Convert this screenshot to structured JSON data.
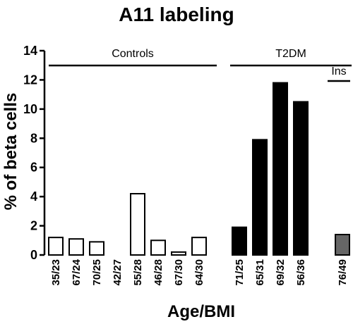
{
  "chart_data": {
    "type": "bar",
    "title": "A11 labeling",
    "xlabel": "Age/BMI",
    "ylabel": "% of beta cells",
    "ylim": [
      0,
      14
    ],
    "yticks": [
      0,
      2,
      4,
      6,
      8,
      10,
      12,
      14
    ],
    "grid": false,
    "groups": [
      {
        "label": "Controls",
        "color": "#ffffff",
        "categories": [
          "35/23",
          "67/24",
          "70/25",
          "42/27",
          "55/28",
          "46/28",
          "67/30",
          "64/30"
        ],
        "values": [
          1.2,
          1.1,
          0.9,
          0.0,
          4.2,
          1.0,
          0.2,
          1.2
        ]
      },
      {
        "label": "T2DM",
        "color": "#000000",
        "categories": [
          "71/25",
          "65/31",
          "69/32",
          "56/36"
        ],
        "values": [
          1.9,
          7.9,
          11.8,
          10.5
        ]
      },
      {
        "label": "Ins",
        "color": "#666666",
        "categories": [
          "76/49"
        ],
        "values": [
          1.4
        ]
      }
    ]
  }
}
